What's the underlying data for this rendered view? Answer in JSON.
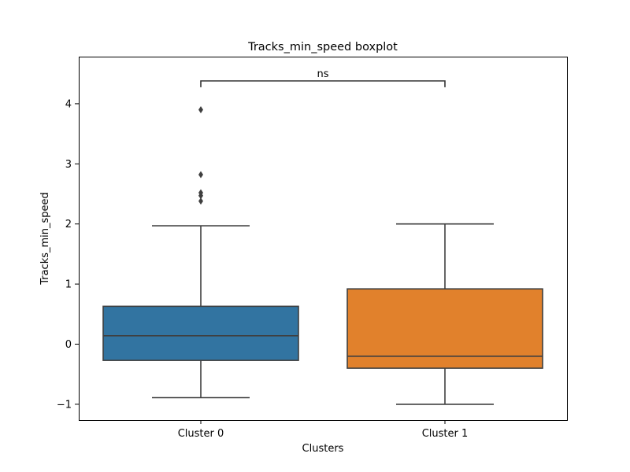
{
  "chart_data": {
    "type": "boxplot",
    "title": "Tracks_min_speed boxplot",
    "xlabel": "Clusters",
    "ylabel": "Tracks_min_speed",
    "ylim": [
      -1.3,
      4.8
    ],
    "yticks": [
      -1,
      0,
      1,
      2,
      3,
      4
    ],
    "ytick_labels": [
      "−1",
      "0",
      "1",
      "2",
      "3",
      "4"
    ],
    "categories": [
      "Cluster 0",
      "Cluster 1"
    ],
    "boxes": [
      {
        "category": "Cluster 0",
        "color": "#3274a1",
        "whisker_low": -0.89,
        "q1": -0.27,
        "median": 0.14,
        "q3": 0.63,
        "whisker_high": 1.97,
        "outliers": [
          2.38,
          2.47,
          2.52,
          2.82,
          3.9
        ]
      },
      {
        "category": "Cluster 1",
        "color": "#e1812c",
        "whisker_low": -1.0,
        "q1": -0.4,
        "median": -0.2,
        "q3": 0.92,
        "whisker_high": 2.0,
        "outliers": []
      }
    ],
    "annotation": {
      "text": "ns",
      "from": "Cluster 0",
      "to": "Cluster 1",
      "y": 4.38
    },
    "grid": false,
    "legend": "none"
  }
}
